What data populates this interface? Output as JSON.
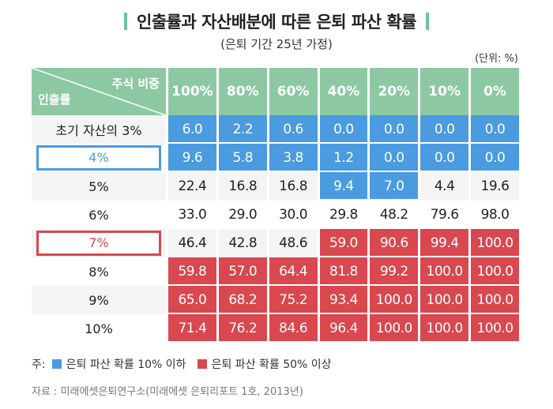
{
  "title": "인출률과 자산배분에 따른 은퇴 파산 확률",
  "subtitle": "(은퇴 기간 25년 가정)",
  "unit": "(단위: %)",
  "colors": {
    "header": "#8cc9a3",
    "blue": "#4a9be0",
    "red": "#d9474f",
    "title_bar": "#6cc49a"
  },
  "corner": {
    "top": "주식 비중",
    "bottom": "인출률"
  },
  "chart_data": {
    "type": "table",
    "title": "인출률과 자산배분에 따른 은퇴 파산 확률",
    "subtitle": "(은퇴 기간 25년 가정)",
    "columns": [
      "100%",
      "80%",
      "60%",
      "40%",
      "20%",
      "10%",
      "0%"
    ],
    "rows": [
      {
        "label": "초기 자산의 3%",
        "values": [
          "6.0",
          "2.2",
          "0.6",
          "0.0",
          "0.0",
          "0.0",
          "0.0"
        ],
        "colors": [
          "blue",
          "blue",
          "blue",
          "blue",
          "blue",
          "blue",
          "blue"
        ]
      },
      {
        "label": "4%",
        "highlight": "blue",
        "values": [
          "9.6",
          "5.8",
          "3.8",
          "1.2",
          "0.0",
          "0.0",
          "0.0"
        ],
        "colors": [
          "blue",
          "blue",
          "blue",
          "blue",
          "blue",
          "blue",
          "blue"
        ]
      },
      {
        "label": "5%",
        "values": [
          "22.4",
          "16.8",
          "16.8",
          "9.4",
          "7.0",
          "4.4",
          "19.6"
        ],
        "colors": [
          "",
          "",
          "",
          "blue",
          "blue",
          "",
          ""
        ]
      },
      {
        "label": "6%",
        "values": [
          "33.0",
          "29.0",
          "30.0",
          "29.8",
          "48.2",
          "79.6",
          "98.0"
        ],
        "colors": [
          "",
          "",
          "",
          "",
          "",
          "",
          ""
        ]
      },
      {
        "label": "7%",
        "highlight": "red",
        "values": [
          "46.4",
          "42.8",
          "48.6",
          "59.0",
          "90.6",
          "99.4",
          "100.0"
        ],
        "colors": [
          "",
          "",
          "",
          "red",
          "red",
          "red",
          "red"
        ]
      },
      {
        "label": "8%",
        "values": [
          "59.8",
          "57.0",
          "64.4",
          "81.8",
          "99.2",
          "100.0",
          "100.0"
        ],
        "colors": [
          "red",
          "red",
          "red",
          "red",
          "red",
          "red",
          "red"
        ]
      },
      {
        "label": "9%",
        "values": [
          "65.0",
          "68.2",
          "75.2",
          "93.4",
          "100.0",
          "100.0",
          "100.0"
        ],
        "colors": [
          "red",
          "red",
          "red",
          "red",
          "red",
          "red",
          "red"
        ]
      },
      {
        "label": "10%",
        "values": [
          "71.4",
          "76.2",
          "84.6",
          "96.4",
          "100.0",
          "100.0",
          "100.0"
        ],
        "colors": [
          "red",
          "red",
          "red",
          "red",
          "red",
          "red",
          "red"
        ]
      }
    ]
  },
  "legend": {
    "prefix": "주:",
    "items": [
      {
        "label": "은퇴 파산 확률 10% 이하",
        "color": "#4a9be0"
      },
      {
        "label": "은퇴 파산 확률 50% 이상",
        "color": "#d9474f"
      }
    ]
  },
  "source": "자료 : 미래에셋은퇴연구소(미래에셋 은퇴리포트 1호, 2013년)"
}
